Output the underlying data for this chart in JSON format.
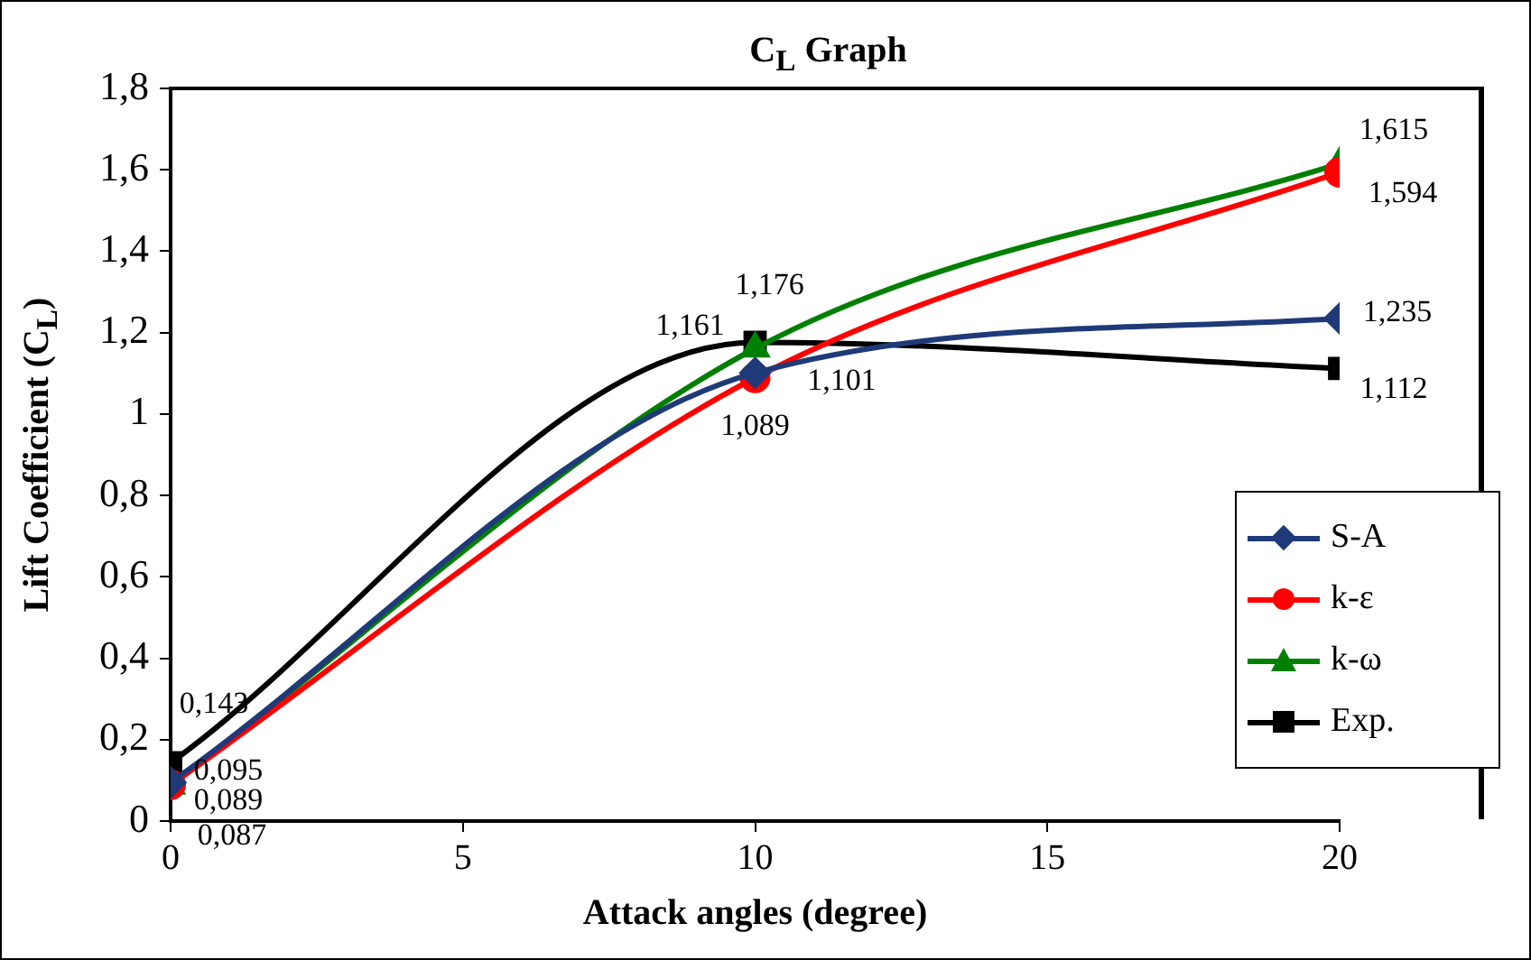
{
  "chart_data": {
    "type": "line",
    "title": "C$_{L}$ Graph",
    "xlabel": "Attack angles (degree)",
    "ylabel": "Lift Coefficient (C$_{L}$)",
    "x": [
      0,
      10,
      20
    ],
    "series": [
      {
        "name": "S-A",
        "color": "#1f3a78",
        "marker": "diamond",
        "values": [
          0.095,
          1.101,
          1.235
        ],
        "value_labels": [
          "0,095",
          "1,101",
          "1,235"
        ]
      },
      {
        "name": "k-ε",
        "color": "#ff0000",
        "marker": "circle",
        "values": [
          0.089,
          1.089,
          1.594
        ],
        "value_labels": [
          "0,089",
          "1,089",
          "1,594"
        ]
      },
      {
        "name": "k-ω",
        "color": "#008000",
        "marker": "triangle",
        "values": [
          0.087,
          1.161,
          1.615
        ],
        "value_labels": [
          "0,087",
          "1,161",
          "1,615"
        ]
      },
      {
        "name": "Exp.",
        "color": "#000000",
        "marker": "square",
        "values": [
          0.143,
          1.176,
          1.112
        ],
        "value_labels": [
          "0,143",
          "1,176",
          "1,112"
        ]
      }
    ],
    "xlim": [
      0,
      20
    ],
    "xticks": [
      0,
      5,
      10,
      15,
      20
    ],
    "ylim": [
      0,
      1.8
    ],
    "yticks": [
      0,
      {
        "value": 0.2,
        "label": "0,2"
      },
      {
        "value": 0.4,
        "label": "0,4"
      },
      {
        "value": 0.6,
        "label": "0,6"
      },
      {
        "value": 0.8,
        "label": "0,8"
      },
      1,
      {
        "value": 1.2,
        "label": "1,2"
      },
      {
        "value": 1.4,
        "label": "1,4"
      },
      {
        "value": 1.6,
        "label": "1,6"
      },
      {
        "value": 1.8,
        "label": "1,8"
      }
    ],
    "grid": false,
    "legend": "right",
    "line_style": "solid"
  }
}
